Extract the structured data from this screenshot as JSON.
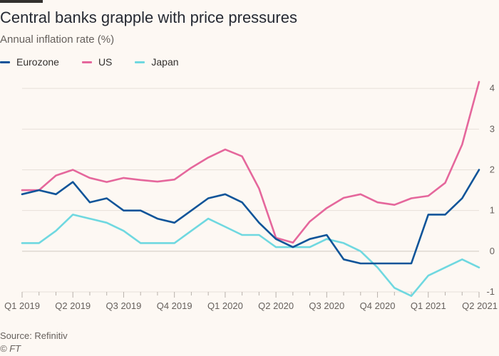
{
  "header": {
    "title": "Central banks grapple with price pressures",
    "subtitle": "Annual inflation rate (%)"
  },
  "footer": {
    "source": "Source: Refinitiv",
    "credit": "© FT"
  },
  "chart_data": {
    "type": "line",
    "title": "Central banks grapple with price pressures",
    "subtitle": "Annual inflation rate (%)",
    "xlabel": "",
    "ylabel": "",
    "x": [
      "2019-01",
      "2019-02",
      "2019-03",
      "2019-04",
      "2019-05",
      "2019-06",
      "2019-07",
      "2019-08",
      "2019-09",
      "2019-10",
      "2019-11",
      "2019-12",
      "2020-01",
      "2020-02",
      "2020-03",
      "2020-04",
      "2020-05",
      "2020-06",
      "2020-07",
      "2020-08",
      "2020-09",
      "2020-10",
      "2020-11",
      "2020-12",
      "2021-01",
      "2021-02",
      "2021-03",
      "2021-04"
    ],
    "x_tick_labels": [
      "Q1 2019",
      "Q2 2019",
      "Q3 2019",
      "Q4 2019",
      "Q1 2020",
      "Q2 2020",
      "Q3 2020",
      "Q4 2020",
      "Q1 2021",
      "Q2 2021"
    ],
    "x_tick_positions": [
      "2019-01",
      "2019-04",
      "2019-07",
      "2019-10",
      "2020-01",
      "2020-04",
      "2020-07",
      "2020-10",
      "2021-01",
      "2021-04"
    ],
    "y_ticks": [
      -1,
      0,
      1,
      2,
      3,
      4
    ],
    "ylim": [
      -1,
      4.3
    ],
    "grid": true,
    "y_axis_side": "right",
    "legend_position": "top-left",
    "series": [
      {
        "name": "Eurozone",
        "color": "#0f5499",
        "values": [
          1.4,
          1.5,
          1.4,
          1.7,
          1.2,
          1.3,
          1.0,
          1.0,
          0.8,
          0.7,
          1.0,
          1.3,
          1.4,
          1.2,
          0.7,
          0.3,
          0.1,
          0.3,
          0.4,
          -0.2,
          -0.3,
          -0.3,
          -0.3,
          -0.3,
          0.9,
          0.9,
          1.3,
          2.0
        ]
      },
      {
        "name": "US",
        "color": "#e5679c",
        "values": [
          1.5,
          1.5,
          1.86,
          2.0,
          1.8,
          1.7,
          1.8,
          1.75,
          1.71,
          1.76,
          2.05,
          2.3,
          2.5,
          2.33,
          1.54,
          0.33,
          0.21,
          0.73,
          1.06,
          1.31,
          1.4,
          1.2,
          1.14,
          1.3,
          1.36,
          1.68,
          2.62,
          4.16
        ]
      },
      {
        "name": "Japan",
        "color": "#6fd8e0",
        "values": [
          0.2,
          0.2,
          0.5,
          0.9,
          0.8,
          0.7,
          0.5,
          0.2,
          0.2,
          0.2,
          0.5,
          0.8,
          0.6,
          0.4,
          0.4,
          0.1,
          0.1,
          0.1,
          0.3,
          0.2,
          0.0,
          -0.4,
          -0.9,
          -1.1,
          -0.6,
          -0.4,
          -0.2,
          -0.4
        ]
      }
    ]
  }
}
